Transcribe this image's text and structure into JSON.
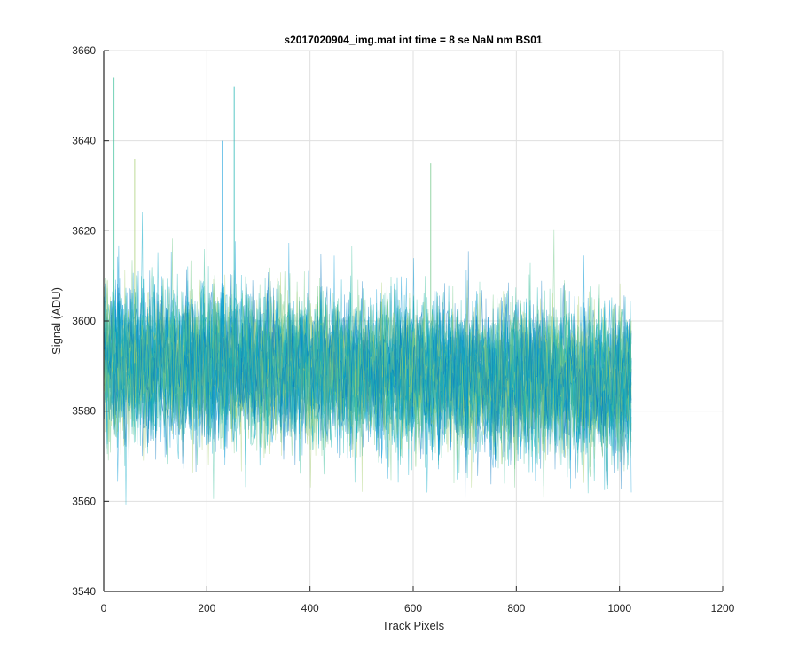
{
  "chart_data": {
    "type": "line",
    "title": "s2017020904_img.mat int time = 8 se  NaN nm BS01",
    "xlabel": "Track Pixels",
    "ylabel": "Signal (ADU)",
    "xlim": [
      0,
      1200
    ],
    "ylim": [
      3540,
      3660
    ],
    "xticks": [
      0,
      200,
      400,
      600,
      800,
      1000,
      1200
    ],
    "yticks": [
      3540,
      3560,
      3580,
      3600,
      3620,
      3640,
      3660
    ],
    "grid": true,
    "legend": "none",
    "series_description": "many overlapping noisy traces spanning track pixels 1 to 1024",
    "series_count_estimate": 30,
    "x_range": [
      1,
      1024
    ],
    "band": {
      "mean_start": 3591,
      "mean_end": 3586,
      "typical_low": 3565,
      "typical_high": 3612,
      "extreme_low": 3549,
      "extreme_high": 3654
    },
    "spikes": [
      {
        "x": 20,
        "y": 3654
      },
      {
        "x": 60,
        "y": 3636
      },
      {
        "x": 230,
        "y": 3640
      },
      {
        "x": 253,
        "y": 3652
      },
      {
        "x": 634,
        "y": 3635
      }
    ],
    "colors": [
      "#0072bd",
      "#0095d6",
      "#00a6c4",
      "#19b2b0",
      "#3cbf9a",
      "#6cc784",
      "#a5cd6f"
    ]
  }
}
